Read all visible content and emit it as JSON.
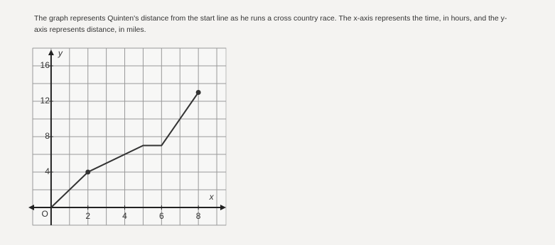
{
  "question_lines": [
    "The graph represents Quinten's distance from the start line as he runs a cross country race. The x-axis represents the time, in hours, and the y-",
    "axis represents distance, in miles."
  ],
  "chart_data": {
    "type": "line",
    "x_label": "x",
    "y_label": "y",
    "origin_label": "O",
    "x": [
      0,
      2,
      5,
      6,
      8
    ],
    "y": [
      0,
      4,
      7,
      7,
      13
    ],
    "color": "#333333",
    "xlim": [
      -1,
      9.5
    ],
    "ylim": [
      -2,
      18
    ],
    "xticks": [
      2,
      4,
      6,
      8
    ],
    "yticks": [
      4,
      8,
      12,
      16
    ],
    "grid": true,
    "grid_x_step": 1,
    "grid_y_step": 2
  }
}
